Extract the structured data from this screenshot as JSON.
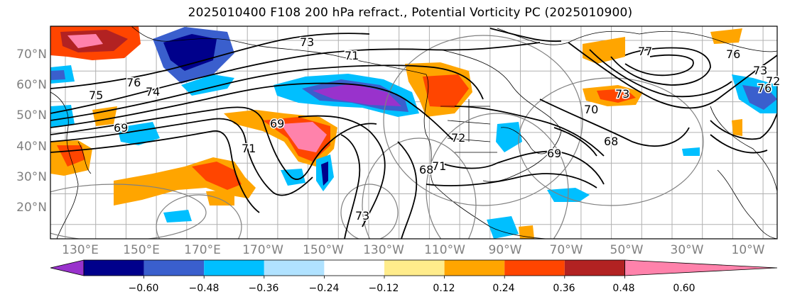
{
  "title": "2025010400 F108 200 hPa refract., Potential Vorticity PC (2025010900)",
  "lat_labels": [
    "70°N",
    "60°N",
    "50°N",
    "40°N",
    "30°N",
    "20°N"
  ],
  "lon_labels": [
    "130°E",
    "150°E",
    "170°E",
    "170°W",
    "150°W",
    "130°W",
    "110°W",
    "90°W",
    "70°W",
    "50°W",
    "30°W",
    "10°W"
  ],
  "colorbar": {
    "ticks": [
      "−0.60",
      "−0.48",
      "−0.36",
      "−0.24",
      "−0.12",
      "0.12",
      "0.24",
      "0.36",
      "0.48",
      "0.60"
    ],
    "colors": [
      "#9932cc",
      "#00008b",
      "#3a5fcd",
      "#00bfff",
      "#b0e2ff",
      "#ffffff",
      "#ffec8b",
      "#ffa500",
      "#ff4500",
      "#b22222",
      "#ff82ab"
    ]
  },
  "contour_labels": [
    "75",
    "76",
    "74",
    "73",
    "71",
    "69",
    "71",
    "69",
    "72",
    "69",
    "68",
    "70",
    "73",
    "71",
    "77",
    "76",
    "73",
    "72",
    "68",
    "73",
    "76"
  ],
  "colors": {
    "coast": "#000000",
    "grid": "#b0b0b0",
    "contour": "#000000",
    "circle": "#808080"
  }
}
